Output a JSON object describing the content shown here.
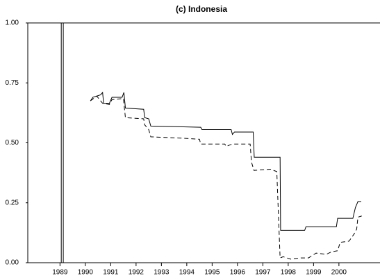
{
  "chart_data": {
    "type": "line",
    "title": "(c) Indonesia",
    "xlim": [
      1988.23,
      2002.12
    ],
    "ylim": [
      0,
      1
    ],
    "xticks": [
      {
        "value": 1989.5,
        "label": "1989"
      },
      {
        "value": 1990.5,
        "label": "1990"
      },
      {
        "value": 1991.5,
        "label": "1991"
      },
      {
        "value": 1992.5,
        "label": "1992"
      },
      {
        "value": 1993.5,
        "label": "1993"
      },
      {
        "value": 1994.5,
        "label": "1994"
      },
      {
        "value": 1995.5,
        "label": "1995"
      },
      {
        "value": 1996.5,
        "label": "1996"
      },
      {
        "value": 1997.5,
        "label": "1997"
      },
      {
        "value": 1998.5,
        "label": "1998"
      },
      {
        "value": 1999.5,
        "label": "1999"
      },
      {
        "value": 2000.5,
        "label": "2000"
      }
    ],
    "yticks": [
      {
        "value": 0,
        "label": "0.00"
      },
      {
        "value": 0.25,
        "label": "0.25"
      },
      {
        "value": 0.5,
        "label": "0.50"
      },
      {
        "value": 0.75,
        "label": "0.75"
      },
      {
        "value": 1,
        "label": "1.00"
      }
    ],
    "vlines": [
      1989.55,
      1989.63
    ],
    "series": [
      {
        "color": "#000000",
        "style": "solid",
        "x": [
          1990.7,
          1990.8,
          1990.95,
          1991.1,
          1991.18,
          1991.22,
          1991.45,
          1991.55,
          1991.95,
          1992.02,
          1992.08,
          1992.8,
          1992.84,
          1993.0,
          1993.08,
          1995.05,
          1995.1,
          1996.25,
          1996.3,
          1996.38,
          1997.12,
          1997.16,
          1998.18,
          1998.2,
          1999.15,
          1999.2,
          2000.4,
          2000.45,
          2001.05,
          2001.15,
          2001.25,
          2001.38
        ],
        "values": [
          0.675,
          0.69,
          0.695,
          0.7,
          0.71,
          0.665,
          0.665,
          0.69,
          0.69,
          0.71,
          0.645,
          0.64,
          0.605,
          0.6,
          0.57,
          0.565,
          0.555,
          0.555,
          0.535,
          0.545,
          0.545,
          0.44,
          0.44,
          0.135,
          0.135,
          0.15,
          0.15,
          0.185,
          0.185,
          0.23,
          0.255,
          0.255
        ]
      },
      {
        "color": "#000000",
        "style": "dashed",
        "x": [
          1990.7,
          1990.95,
          1991.18,
          1991.45,
          1991.55,
          1992.0,
          1992.08,
          1992.8,
          1992.84,
          1993.0,
          1993.08,
          1994.2,
          1995.0,
          1995.05,
          1996.0,
          1996.05,
          1996.3,
          1997.0,
          1997.05,
          1997.15,
          1997.8,
          1998.05,
          1998.18,
          1998.3,
          1998.6,
          1999.0,
          1999.3,
          1999.6,
          2000.0,
          2000.2,
          2000.45,
          2000.55,
          2000.9,
          2001.1,
          2001.2,
          2001.25,
          2001.4
        ],
        "values": [
          0.675,
          0.695,
          0.665,
          0.66,
          0.68,
          0.685,
          0.605,
          0.6,
          0.575,
          0.555,
          0.525,
          0.52,
          0.515,
          0.495,
          0.495,
          0.485,
          0.495,
          0.495,
          0.42,
          0.385,
          0.39,
          0.38,
          0.02,
          0.025,
          0.015,
          0.02,
          0.02,
          0.04,
          0.035,
          0.045,
          0.05,
          0.085,
          0.09,
          0.12,
          0.14,
          0.19,
          0.195
        ]
      }
    ]
  }
}
